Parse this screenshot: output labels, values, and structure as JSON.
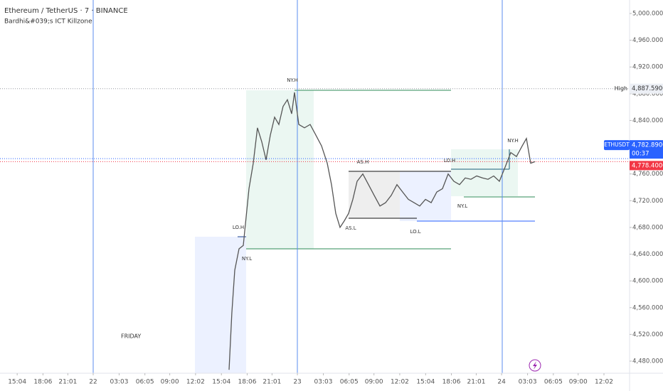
{
  "chart_data": {
    "type": "line",
    "title": "Ethereum / TetherUS · 7 · BINANCE",
    "subtitle": "Bardhi&#039;s ICT Killzone",
    "x": [
      15.97,
      16.3,
      16.64,
      17.14,
      17.64,
      18.31,
      18.81,
      19.31,
      19.82,
      20.32,
      20.82,
      21.32,
      21.82,
      22.32,
      22.83,
      23.33,
      23.66,
      24.16,
      24.83,
      25.5,
      26.17,
      26.84,
      27.51,
      28.01,
      28.51,
      29.01,
      29.52,
      30.02,
      30.52,
      31.02,
      31.69,
      32.36,
      33.03,
      33.7,
      34.36,
      35.03,
      35.7,
      36.37,
      37.04,
      37.71,
      38.38,
      39.05,
      39.72,
      40.38,
      41.05,
      41.72,
      42.39,
      43.06,
      43.73,
      44.4,
      45.07,
      45.74,
      46.4,
      47.07,
      47.74,
      48.41,
      49.08,
      49.75,
      50.42,
      50.92,
      51.42,
      51.92
    ],
    "series": [
      {
        "name": "ETHUSDT",
        "color": "#555555",
        "values": [
          4467,
          4552,
          4616,
          4648,
          4653,
          4738,
          4776,
          4829,
          4808,
          4781,
          4818,
          4845,
          4834,
          4861,
          4871,
          4850,
          4882,
          4834,
          4829,
          4834,
          4818,
          4802,
          4776,
          4744,
          4701,
          4680,
          4690,
          4701,
          4722,
          4749,
          4760,
          4744,
          4728,
          4712,
          4717,
          4728,
          4744,
          4733,
          4722,
          4717,
          4712,
          4722,
          4717,
          4733,
          4738,
          4760,
          4749,
          4744,
          4754,
          4752,
          4757,
          4754,
          4752,
          4757,
          4749,
          4770,
          4792,
          4786,
          4802,
          4813,
          4776,
          4778.4
        ]
      }
    ],
    "xlim": [
      -10.95,
      63.04
    ],
    "xticks": [
      {
        "value": -8.93,
        "label": "15:04"
      },
      {
        "value": -5.9,
        "label": "18:06"
      },
      {
        "value": -2.98,
        "label": "21:01"
      },
      {
        "value": 0,
        "label": "22"
      },
      {
        "value": 3.05,
        "label": "03:03"
      },
      {
        "value": 6.08,
        "label": "06:05"
      },
      {
        "value": 9,
        "label": "09:00"
      },
      {
        "value": 12.03,
        "label": "12:02"
      },
      {
        "value": 15.07,
        "label": "15:04"
      },
      {
        "value": 18.1,
        "label": "18:06"
      },
      {
        "value": 21.02,
        "label": "21:01"
      },
      {
        "value": 24,
        "label": "23"
      },
      {
        "value": 27.05,
        "label": "03:03"
      },
      {
        "value": 30.08,
        "label": "06:05"
      },
      {
        "value": 33,
        "label": "09:00"
      },
      {
        "value": 36.03,
        "label": "12:02"
      },
      {
        "value": 39.07,
        "label": "15:04"
      },
      {
        "value": 42.1,
        "label": "18:06"
      },
      {
        "value": 45.02,
        "label": "21:01"
      },
      {
        "value": 48,
        "label": "24"
      },
      {
        "value": 51.05,
        "label": "03:03"
      },
      {
        "value": 54.08,
        "label": "06:05"
      },
      {
        "value": 57,
        "label": "09:00"
      },
      {
        "value": 60.03,
        "label": "12:02"
      }
    ],
    "ylim": [
      4461.9,
      5020.2
    ],
    "yticks": [
      {
        "value": 4480,
        "label": "4,480.00000"
      },
      {
        "value": 4520,
        "label": "4,520.00000"
      },
      {
        "value": 4560,
        "label": "4,560.00000"
      },
      {
        "value": 4600,
        "label": "4,600.00000"
      },
      {
        "value": 4640,
        "label": "4,640.00000"
      },
      {
        "value": 4680,
        "label": "4,680.00000"
      },
      {
        "value": 4720,
        "label": "4,720.00000"
      },
      {
        "value": 4760,
        "label": "4,760.00000"
      },
      {
        "value": 4800,
        "label": "4,800.00000"
      },
      {
        "value": 4840,
        "label": "4,840.00000"
      },
      {
        "value": 4880,
        "label": "4,880.00000"
      },
      {
        "value": 4920,
        "label": "4,920.00000"
      },
      {
        "value": 4960,
        "label": "4,960.00000"
      },
      {
        "value": 5000,
        "label": "5,000.00000"
      }
    ],
    "grid": false,
    "high_line": {
      "name": "High",
      "value": 4887.59,
      "label": "4,887.59000"
    },
    "price_lines": [
      {
        "value": 4782.89,
        "label": "4,782.89000",
        "color": "#2962ff"
      },
      {
        "value": 4778.4,
        "label": "4,778.40000",
        "color": "#f23645"
      }
    ],
    "countdown": "00:37",
    "annotations": [
      "NY.H",
      "LO.H",
      "NY.L",
      "AS.H",
      "AS.L",
      "LO.L",
      "LO.H",
      "NY.L",
      "NY.H"
    ],
    "day_label": "FRIDAY"
  }
}
